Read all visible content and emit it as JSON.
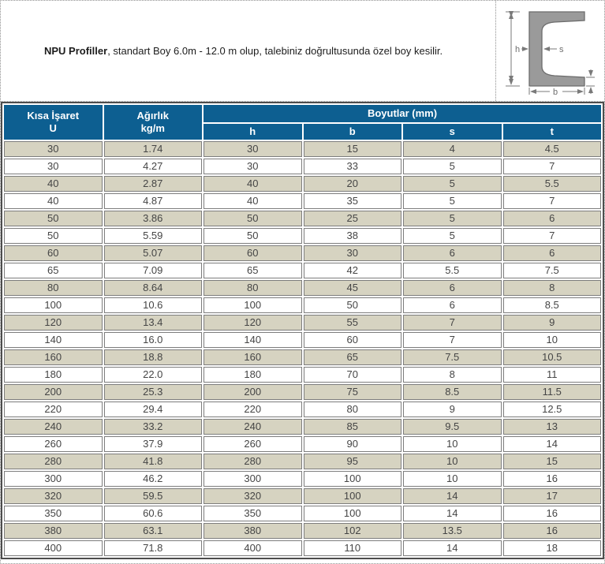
{
  "intro": {
    "title_bold": "NPU Profiller",
    "text_rest": ", standart Boy 6.0m - 12.0 m olup, talebiniz doğrultusunda özel boy kesilir."
  },
  "diagram": {
    "description": "npu-channel-cross-section",
    "labels": {
      "h": "h",
      "s": "s",
      "b": "b"
    }
  },
  "colors": {
    "header_blue": "#0d5f91",
    "row_beige": "#d6d3c1",
    "cell_border_gray": "#7d7d7d",
    "table_outer_border": "#4d4d4d",
    "dotted_border": "#8f8f8f"
  },
  "table": {
    "header": {
      "col1": [
        "Kısa İşaret",
        "U"
      ],
      "col2": [
        "Ağırlık",
        "kg/m"
      ],
      "group": "Boyutlar (mm)",
      "sub": [
        "h",
        "b",
        "s",
        "t"
      ]
    },
    "rows": [
      [
        "30",
        "1.74",
        "30",
        "15",
        "4",
        "4.5"
      ],
      [
        "30",
        "4.27",
        "30",
        "33",
        "5",
        "7"
      ],
      [
        "40",
        "2.87",
        "40",
        "20",
        "5",
        "5.5"
      ],
      [
        "40",
        "4.87",
        "40",
        "35",
        "5",
        "7"
      ],
      [
        "50",
        "3.86",
        "50",
        "25",
        "5",
        "6"
      ],
      [
        "50",
        "5.59",
        "50",
        "38",
        "5",
        "7"
      ],
      [
        "60",
        "5.07",
        "60",
        "30",
        "6",
        "6"
      ],
      [
        "65",
        "7.09",
        "65",
        "42",
        "5.5",
        "7.5"
      ],
      [
        "80",
        "8.64",
        "80",
        "45",
        "6",
        "8"
      ],
      [
        "100",
        "10.6",
        "100",
        "50",
        "6",
        "8.5"
      ],
      [
        "120",
        "13.4",
        "120",
        "55",
        "7",
        "9"
      ],
      [
        "140",
        "16.0",
        "140",
        "60",
        "7",
        "10"
      ],
      [
        "160",
        "18.8",
        "160",
        "65",
        "7.5",
        "10.5"
      ],
      [
        "180",
        "22.0",
        "180",
        "70",
        "8",
        "11"
      ],
      [
        "200",
        "25.3",
        "200",
        "75",
        "8.5",
        "11.5"
      ],
      [
        "220",
        "29.4",
        "220",
        "80",
        "9",
        "12.5"
      ],
      [
        "240",
        "33.2",
        "240",
        "85",
        "9.5",
        "13"
      ],
      [
        "260",
        "37.9",
        "260",
        "90",
        "10",
        "14"
      ],
      [
        "280",
        "41.8",
        "280",
        "95",
        "10",
        "15"
      ],
      [
        "300",
        "46.2",
        "300",
        "100",
        "10",
        "16"
      ],
      [
        "320",
        "59.5",
        "320",
        "100",
        "14",
        "17"
      ],
      [
        "350",
        "60.6",
        "350",
        "100",
        "14",
        "16"
      ],
      [
        "380",
        "63.1",
        "380",
        "102",
        "13.5",
        "16"
      ],
      [
        "400",
        "71.8",
        "400",
        "110",
        "14",
        "18"
      ]
    ]
  }
}
